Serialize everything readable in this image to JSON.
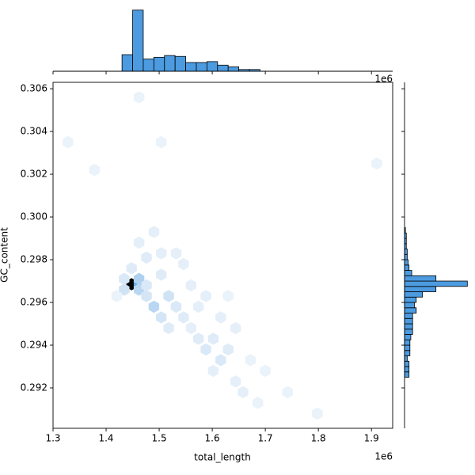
{
  "chart_data": {
    "type": "hexbin-joint",
    "x_label": "total_length",
    "y_label": "GC_content",
    "x_offset_label": "1e6",
    "xlim": [
      1300000,
      1940000
    ],
    "xticks": [
      {
        "value": 1300000,
        "label": "1.3"
      },
      {
        "value": 1400000,
        "label": "1.4"
      },
      {
        "value": 1500000,
        "label": "1.5"
      },
      {
        "value": 1600000,
        "label": "1.6"
      },
      {
        "value": 1700000,
        "label": "1.7"
      },
      {
        "value": 1800000,
        "label": "1.8"
      },
      {
        "value": 1900000,
        "label": "1.9"
      }
    ],
    "ylim": [
      0.29011,
      0.3063
    ],
    "yticks": [
      0.292,
      0.294,
      0.296,
      0.298,
      0.3,
      0.302,
      0.304,
      0.306
    ],
    "ytick_labels": [
      "0.292",
      "0.294",
      "0.296",
      "0.298",
      "0.300",
      "0.302",
      "0.304",
      "0.306"
    ],
    "color": "#4c9be0",
    "hexbin": {
      "x": [
        1448000,
        1462000,
        1462000,
        1462000,
        1434000,
        1434000,
        1476000,
        1476000,
        1448000,
        1490000,
        1518000,
        1504000,
        1476000,
        1490000,
        1532000,
        1546000,
        1504000,
        1546000,
        1518000,
        1560000,
        1574000,
        1588000,
        1602000,
        1616000,
        1630000,
        1602000,
        1644000,
        1658000,
        1574000,
        1616000,
        1686000,
        1798000,
        1742000,
        1532000,
        1462000,
        1420000,
        1328000,
        1462000,
        1504000,
        1378000,
        1910000,
        1588000,
        1560000,
        1644000,
        1504000,
        1630000,
        1672000,
        1700000
      ],
      "y": [
        0.29685,
        0.29685,
        0.2971,
        0.2966,
        0.2966,
        0.2971,
        0.2963,
        0.2968,
        0.2976,
        0.2958,
        0.2963,
        0.2953,
        0.2981,
        0.2993,
        0.2958,
        0.2953,
        0.2973,
        0.2978,
        0.2948,
        0.2948,
        0.2943,
        0.2938,
        0.2943,
        0.2933,
        0.2938,
        0.2928,
        0.2923,
        0.2918,
        0.2958,
        0.2953,
        0.2913,
        0.2908,
        0.2918,
        0.2983,
        0.2988,
        0.2963,
        0.3035,
        0.3056,
        0.3035,
        0.3022,
        0.3025,
        0.2963,
        0.2968,
        0.2948,
        0.2983,
        0.2963,
        0.2933,
        0.2928
      ],
      "values": [
        60,
        25,
        12,
        10,
        6,
        4,
        5,
        4,
        3,
        10,
        6,
        5,
        3,
        2,
        4,
        3,
        3,
        2,
        3,
        2,
        3,
        4,
        3,
        4,
        3,
        2,
        2,
        2,
        2,
        2,
        1,
        1,
        1,
        2,
        2,
        1,
        1,
        1,
        1,
        1,
        1,
        2,
        2,
        2,
        2,
        1,
        1,
        1
      ]
    },
    "x_marginal": {
      "bins": [
        1430000,
        1450000,
        1470000,
        1490000,
        1510000,
        1530000,
        1550000,
        1570000,
        1590000,
        1610000,
        1630000,
        1650000,
        1670000,
        1690000
      ],
      "counts": [
        38,
        140,
        28,
        32,
        36,
        34,
        20,
        20,
        22,
        14,
        10,
        4,
        4
      ],
      "lim": [
        0,
        145
      ]
    },
    "y_marginal": {
      "bins": [
        0.2925,
        0.29275,
        0.293,
        0.29325,
        0.2935,
        0.29375,
        0.294,
        0.29425,
        0.2945,
        0.29475,
        0.295,
        0.29525,
        0.2955,
        0.29575,
        0.296,
        0.29625,
        0.2965,
        0.29675,
        0.297,
        0.29725,
        0.2975,
        0.29775,
        0.298,
        0.29825,
        0.2985,
        0.29875,
        0.299,
        0.29925,
        0.2995
      ],
      "counts": [
        5,
        5,
        5,
        3,
        6,
        6,
        6,
        7,
        9,
        9,
        9,
        9,
        13,
        11,
        13,
        20,
        35,
        70,
        35,
        8,
        5,
        4,
        3,
        3,
        2,
        2,
        2,
        1
      ],
      "lim": [
        0,
        75
      ]
    }
  }
}
